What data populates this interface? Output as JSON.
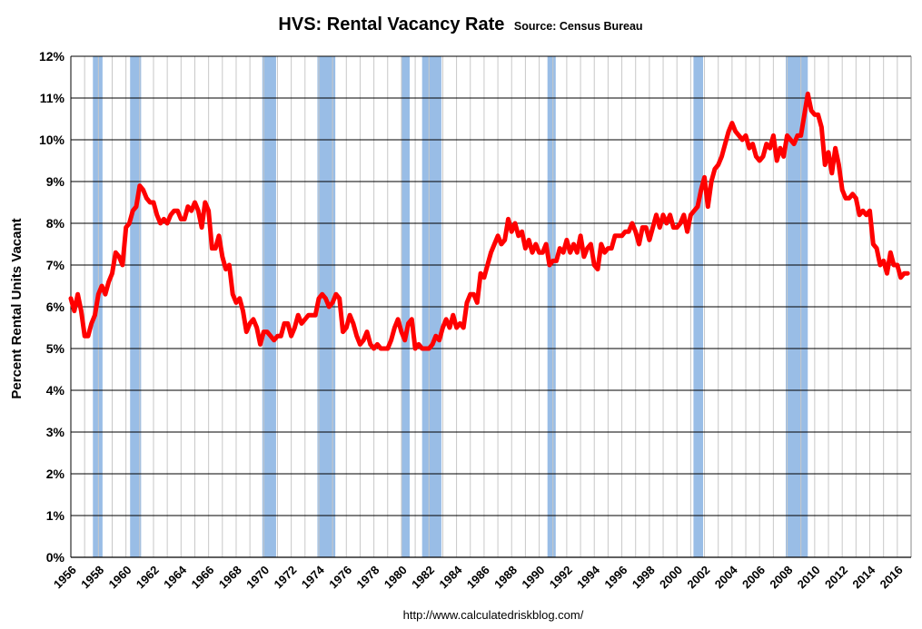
{
  "chart_data": {
    "type": "line",
    "title": "HVS: Rental Vacancy Rate",
    "subtitle": "Source: Census Bureau",
    "ylabel": "Percent Rental Units Vacant",
    "xlabel": "",
    "footer": "http://www.calculatedriskblog.com/",
    "xlim": [
      1956,
      2017
    ],
    "ylim": [
      0,
      12
    ],
    "y_ticks": [
      "0%",
      "1%",
      "2%",
      "3%",
      "4%",
      "5%",
      "6%",
      "7%",
      "8%",
      "9%",
      "10%",
      "11%",
      "12%"
    ],
    "x_ticks": [
      "1956",
      "1958",
      "1960",
      "1962",
      "1964",
      "1966",
      "1968",
      "1970",
      "1972",
      "1974",
      "1976",
      "1978",
      "1980",
      "1982",
      "1984",
      "1986",
      "1988",
      "1990",
      "1992",
      "1994",
      "1996",
      "1998",
      "2000",
      "2002",
      "2004",
      "2006",
      "2008",
      "2010",
      "2012",
      "2014",
      "2016"
    ],
    "grid": true,
    "legend": "none",
    "line_color": "#ff0000",
    "recession_color": "#99bde6",
    "recessions": [
      [
        1957.6,
        1958.3
      ],
      [
        1960.3,
        1961.1
      ],
      [
        1969.9,
        1970.9
      ],
      [
        1973.9,
        1975.2
      ],
      [
        1980.0,
        1980.6
      ],
      [
        1981.5,
        1982.9
      ],
      [
        1990.6,
        1991.2
      ],
      [
        2001.2,
        2001.9
      ],
      [
        2007.9,
        2009.5
      ]
    ],
    "series": [
      {
        "values": [
          [
            1956.0,
            6.2
          ],
          [
            1956.25,
            5.9
          ],
          [
            1956.5,
            6.3
          ],
          [
            1956.75,
            5.9
          ],
          [
            1957.0,
            5.3
          ],
          [
            1957.25,
            5.3
          ],
          [
            1957.5,
            5.6
          ],
          [
            1957.75,
            5.8
          ],
          [
            1958.0,
            6.3
          ],
          [
            1958.25,
            6.5
          ],
          [
            1958.5,
            6.3
          ],
          [
            1958.75,
            6.6
          ],
          [
            1959.0,
            6.8
          ],
          [
            1959.25,
            7.3
          ],
          [
            1959.5,
            7.2
          ],
          [
            1959.75,
            7.0
          ],
          [
            1960.0,
            7.9
          ],
          [
            1960.25,
            8.0
          ],
          [
            1960.5,
            8.3
          ],
          [
            1960.75,
            8.4
          ],
          [
            1961.0,
            8.9
          ],
          [
            1961.25,
            8.8
          ],
          [
            1961.5,
            8.6
          ],
          [
            1961.75,
            8.5
          ],
          [
            1962.0,
            8.5
          ],
          [
            1962.25,
            8.2
          ],
          [
            1962.5,
            8.0
          ],
          [
            1962.75,
            8.1
          ],
          [
            1963.0,
            8.0
          ],
          [
            1963.25,
            8.2
          ],
          [
            1963.5,
            8.3
          ],
          [
            1963.75,
            8.3
          ],
          [
            1964.0,
            8.1
          ],
          [
            1964.25,
            8.1
          ],
          [
            1964.5,
            8.4
          ],
          [
            1964.75,
            8.3
          ],
          [
            1965.0,
            8.5
          ],
          [
            1965.25,
            8.3
          ],
          [
            1965.5,
            7.9
          ],
          [
            1965.75,
            8.5
          ],
          [
            1966.0,
            8.3
          ],
          [
            1966.25,
            7.4
          ],
          [
            1966.5,
            7.4
          ],
          [
            1966.75,
            7.7
          ],
          [
            1967.0,
            7.2
          ],
          [
            1967.25,
            6.9
          ],
          [
            1967.5,
            7.0
          ],
          [
            1967.75,
            6.3
          ],
          [
            1968.0,
            6.1
          ],
          [
            1968.25,
            6.2
          ],
          [
            1968.5,
            5.9
          ],
          [
            1968.75,
            5.4
          ],
          [
            1969.0,
            5.6
          ],
          [
            1969.25,
            5.7
          ],
          [
            1969.5,
            5.5
          ],
          [
            1969.75,
            5.1
          ],
          [
            1970.0,
            5.4
          ],
          [
            1970.25,
            5.4
          ],
          [
            1970.5,
            5.3
          ],
          [
            1970.75,
            5.2
          ],
          [
            1971.0,
            5.3
          ],
          [
            1971.25,
            5.3
          ],
          [
            1971.5,
            5.6
          ],
          [
            1971.75,
            5.6
          ],
          [
            1972.0,
            5.3
          ],
          [
            1972.25,
            5.5
          ],
          [
            1972.5,
            5.8
          ],
          [
            1972.75,
            5.6
          ],
          [
            1973.0,
            5.7
          ],
          [
            1973.25,
            5.8
          ],
          [
            1973.5,
            5.8
          ],
          [
            1973.75,
            5.8
          ],
          [
            1974.0,
            6.2
          ],
          [
            1974.25,
            6.3
          ],
          [
            1974.5,
            6.2
          ],
          [
            1974.75,
            6.0
          ],
          [
            1975.0,
            6.1
          ],
          [
            1975.25,
            6.3
          ],
          [
            1975.5,
            6.2
          ],
          [
            1975.75,
            5.4
          ],
          [
            1976.0,
            5.5
          ],
          [
            1976.25,
            5.8
          ],
          [
            1976.5,
            5.6
          ],
          [
            1976.75,
            5.3
          ],
          [
            1977.0,
            5.1
          ],
          [
            1977.25,
            5.2
          ],
          [
            1977.5,
            5.4
          ],
          [
            1977.75,
            5.1
          ],
          [
            1978.0,
            5.0
          ],
          [
            1978.25,
            5.1
          ],
          [
            1978.5,
            5.0
          ],
          [
            1978.75,
            5.0
          ],
          [
            1979.0,
            5.0
          ],
          [
            1979.25,
            5.2
          ],
          [
            1979.5,
            5.5
          ],
          [
            1979.75,
            5.7
          ],
          [
            1980.0,
            5.4
          ],
          [
            1980.25,
            5.2
          ],
          [
            1980.5,
            5.6
          ],
          [
            1980.75,
            5.7
          ],
          [
            1981.0,
            5.0
          ],
          [
            1981.25,
            5.1
          ],
          [
            1981.5,
            5.0
          ],
          [
            1981.75,
            5.0
          ],
          [
            1982.0,
            5.0
          ],
          [
            1982.25,
            5.1
          ],
          [
            1982.5,
            5.3
          ],
          [
            1982.75,
            5.2
          ],
          [
            1983.0,
            5.5
          ],
          [
            1983.25,
            5.7
          ],
          [
            1983.5,
            5.5
          ],
          [
            1983.75,
            5.8
          ],
          [
            1984.0,
            5.5
          ],
          [
            1984.25,
            5.6
          ],
          [
            1984.5,
            5.5
          ],
          [
            1984.75,
            6.1
          ],
          [
            1985.0,
            6.3
          ],
          [
            1985.25,
            6.3
          ],
          [
            1985.5,
            6.1
          ],
          [
            1985.75,
            6.8
          ],
          [
            1986.0,
            6.7
          ],
          [
            1986.25,
            7.0
          ],
          [
            1986.5,
            7.3
          ],
          [
            1986.75,
            7.5
          ],
          [
            1987.0,
            7.7
          ],
          [
            1987.25,
            7.5
          ],
          [
            1987.5,
            7.6
          ],
          [
            1987.75,
            8.1
          ],
          [
            1988.0,
            7.8
          ],
          [
            1988.25,
            8.0
          ],
          [
            1988.5,
            7.7
          ],
          [
            1988.75,
            7.8
          ],
          [
            1989.0,
            7.4
          ],
          [
            1989.25,
            7.6
          ],
          [
            1989.5,
            7.3
          ],
          [
            1989.75,
            7.5
          ],
          [
            1990.0,
            7.3
          ],
          [
            1990.25,
            7.3
          ],
          [
            1990.5,
            7.5
          ],
          [
            1990.75,
            7.0
          ],
          [
            1991.0,
            7.1
          ],
          [
            1991.25,
            7.1
          ],
          [
            1991.5,
            7.4
          ],
          [
            1991.75,
            7.3
          ],
          [
            1992.0,
            7.6
          ],
          [
            1992.25,
            7.3
          ],
          [
            1992.5,
            7.5
          ],
          [
            1992.75,
            7.3
          ],
          [
            1993.0,
            7.7
          ],
          [
            1993.25,
            7.2
          ],
          [
            1993.5,
            7.4
          ],
          [
            1993.75,
            7.5
          ],
          [
            1994.0,
            7.0
          ],
          [
            1994.25,
            6.9
          ],
          [
            1994.5,
            7.5
          ],
          [
            1994.75,
            7.3
          ],
          [
            1995.0,
            7.4
          ],
          [
            1995.25,
            7.4
          ],
          [
            1995.5,
            7.7
          ],
          [
            1995.75,
            7.7
          ],
          [
            1996.0,
            7.7
          ],
          [
            1996.25,
            7.8
          ],
          [
            1996.5,
            7.8
          ],
          [
            1996.75,
            8.0
          ],
          [
            1997.0,
            7.8
          ],
          [
            1997.25,
            7.5
          ],
          [
            1997.5,
            7.9
          ],
          [
            1997.75,
            7.9
          ],
          [
            1998.0,
            7.6
          ],
          [
            1998.25,
            7.9
          ],
          [
            1998.5,
            8.2
          ],
          [
            1998.75,
            7.9
          ],
          [
            1999.0,
            8.2
          ],
          [
            1999.25,
            8.0
          ],
          [
            1999.5,
            8.2
          ],
          [
            1999.75,
            7.9
          ],
          [
            2000.0,
            7.9
          ],
          [
            2000.25,
            8.0
          ],
          [
            2000.5,
            8.2
          ],
          [
            2000.75,
            7.8
          ],
          [
            2001.0,
            8.2
          ],
          [
            2001.25,
            8.3
          ],
          [
            2001.5,
            8.4
          ],
          [
            2001.75,
            8.8
          ],
          [
            2002.0,
            9.1
          ],
          [
            2002.25,
            8.4
          ],
          [
            2002.5,
            9.0
          ],
          [
            2002.75,
            9.3
          ],
          [
            2003.0,
            9.4
          ],
          [
            2003.25,
            9.6
          ],
          [
            2003.5,
            9.9
          ],
          [
            2003.75,
            10.2
          ],
          [
            2004.0,
            10.4
          ],
          [
            2004.25,
            10.2
          ],
          [
            2004.5,
            10.1
          ],
          [
            2004.75,
            10.0
          ],
          [
            2005.0,
            10.1
          ],
          [
            2005.25,
            9.8
          ],
          [
            2005.5,
            9.9
          ],
          [
            2005.75,
            9.6
          ],
          [
            2006.0,
            9.5
          ],
          [
            2006.25,
            9.6
          ],
          [
            2006.5,
            9.9
          ],
          [
            2006.75,
            9.8
          ],
          [
            2007.0,
            10.1
          ],
          [
            2007.25,
            9.5
          ],
          [
            2007.5,
            9.8
          ],
          [
            2007.75,
            9.6
          ],
          [
            2008.0,
            10.1
          ],
          [
            2008.25,
            10.0
          ],
          [
            2008.5,
            9.9
          ],
          [
            2008.75,
            10.1
          ],
          [
            2009.0,
            10.1
          ],
          [
            2009.25,
            10.6
          ],
          [
            2009.5,
            11.1
          ],
          [
            2009.75,
            10.7
          ],
          [
            2010.0,
            10.6
          ],
          [
            2010.25,
            10.6
          ],
          [
            2010.5,
            10.3
          ],
          [
            2010.75,
            9.4
          ],
          [
            2011.0,
            9.7
          ],
          [
            2011.25,
            9.2
          ],
          [
            2011.5,
            9.8
          ],
          [
            2011.75,
            9.4
          ],
          [
            2012.0,
            8.8
          ],
          [
            2012.25,
            8.6
          ],
          [
            2012.5,
            8.6
          ],
          [
            2012.75,
            8.7
          ],
          [
            2013.0,
            8.6
          ],
          [
            2013.25,
            8.2
          ],
          [
            2013.5,
            8.3
          ],
          [
            2013.75,
            8.2
          ],
          [
            2014.0,
            8.3
          ],
          [
            2014.25,
            7.5
          ],
          [
            2014.5,
            7.4
          ],
          [
            2014.75,
            7.0
          ],
          [
            2015.0,
            7.1
          ],
          [
            2015.25,
            6.8
          ],
          [
            2015.5,
            7.3
          ],
          [
            2015.75,
            7.0
          ],
          [
            2016.0,
            7.0
          ],
          [
            2016.25,
            6.7
          ],
          [
            2016.5,
            6.8
          ],
          [
            2016.75,
            6.8
          ]
        ]
      }
    ]
  }
}
